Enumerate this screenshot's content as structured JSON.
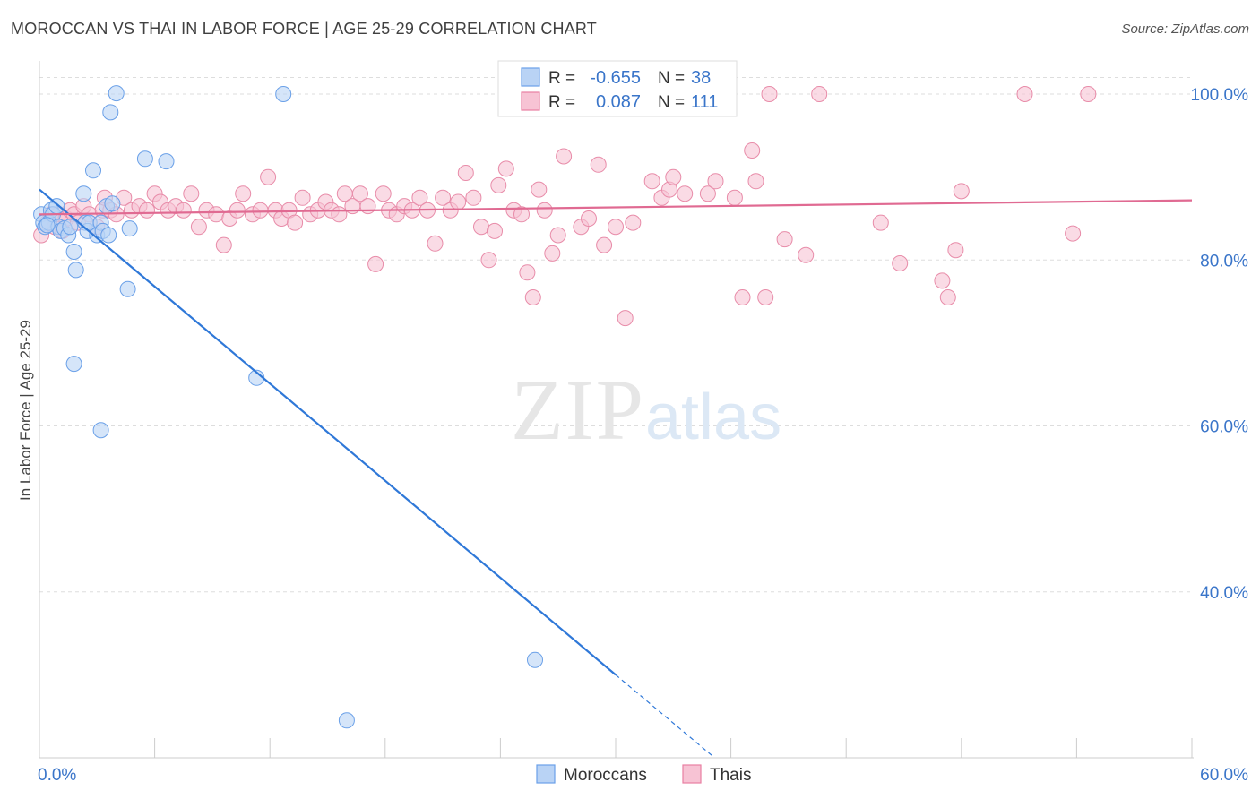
{
  "header": {
    "title": "MOROCCAN VS THAI IN LABOR FORCE | AGE 25-29 CORRELATION CHART",
    "source": "Source: ZipAtlas.com"
  },
  "watermark": {
    "zip": "ZIP",
    "atlas": "atlas"
  },
  "stats_legend": {
    "rows": [
      {
        "r_label": "R =",
        "r_value": "-0.655",
        "n_label": "N =",
        "n_value": "38",
        "color": "#6aa0e8",
        "fill": "#b9d3f5"
      },
      {
        "r_label": "R =",
        "r_value": "0.087",
        "n_label": "N =",
        "n_value": "111",
        "color": "#e87fa2",
        "fill": "#f7c3d4"
      }
    ]
  },
  "colors": {
    "moroccan_fill": "#b9d3f5",
    "moroccan_stroke": "#6aa0e8",
    "moroccan_line": "#2f78d8",
    "thai_fill": "#f7c3d4",
    "thai_stroke": "#e88ca9",
    "thai_line": "#e06a92",
    "value_text": "#3a75c9",
    "grid": "#dddddd"
  },
  "chart_data": {
    "type": "scatter",
    "title": "MOROCCAN VS THAI IN LABOR FORCE | AGE 25-29 CORRELATION CHART",
    "xlabel": "",
    "ylabel": "In Labor Force | Age 25-29",
    "xlim": [
      0,
      60
    ],
    "ylim": [
      20,
      104
    ],
    "x_tick_labels": [
      "0.0%",
      "60.0%"
    ],
    "y_ticks": [
      40,
      60,
      80,
      100
    ],
    "y_tick_labels": [
      "40.0%",
      "60.0%",
      "80.0%",
      "100.0%"
    ],
    "grid": "horizontal dashed",
    "legend_position": "bottom-center",
    "series": [
      {
        "name": "Moroccans",
        "r": -0.655,
        "n": 38,
        "trend": {
          "x_start": 0.0,
          "y_start": 88.5,
          "x_end": 30.0,
          "y_end": 30.0,
          "dashed_to_x": 35.0,
          "dashed_to_y": 20.3
        },
        "points": [
          [
            0.1,
            85.5
          ],
          [
            0.2,
            84.5
          ],
          [
            0.3,
            84.0
          ],
          [
            0.5,
            84.5
          ],
          [
            0.6,
            86.0
          ],
          [
            0.7,
            85.5
          ],
          [
            0.9,
            86.5
          ],
          [
            1.0,
            84.0
          ],
          [
            1.1,
            83.5
          ],
          [
            1.3,
            83.8
          ],
          [
            1.5,
            83.0
          ],
          [
            1.6,
            84.0
          ],
          [
            1.8,
            81.0
          ],
          [
            1.9,
            78.8
          ],
          [
            2.3,
            88.0
          ],
          [
            2.4,
            84.5
          ],
          [
            2.5,
            83.5
          ],
          [
            2.6,
            84.5
          ],
          [
            2.8,
            90.8
          ],
          [
            3.0,
            83.0
          ],
          [
            3.2,
            84.5
          ],
          [
            3.3,
            83.5
          ],
          [
            3.5,
            86.5
          ],
          [
            3.6,
            83.0
          ],
          [
            3.8,
            86.8
          ],
          [
            3.7,
            97.8
          ],
          [
            4.0,
            100.1
          ],
          [
            4.6,
            76.5
          ],
          [
            4.7,
            83.8
          ],
          [
            5.5,
            92.2
          ],
          [
            6.6,
            91.9
          ],
          [
            1.8,
            67.5
          ],
          [
            3.2,
            59.5
          ],
          [
            11.3,
            65.8
          ],
          [
            12.7,
            100.0
          ],
          [
            25.8,
            31.8
          ],
          [
            16.0,
            24.5
          ],
          [
            0.4,
            84.2
          ]
        ]
      },
      {
        "name": "Thais",
        "r": 0.087,
        "n": 111,
        "trend": {
          "x_start": 0.0,
          "y_start": 85.5,
          "x_end": 60.0,
          "y_end": 87.2
        },
        "points": [
          [
            0.1,
            83.0
          ],
          [
            0.4,
            84.5
          ],
          [
            0.6,
            85.5
          ],
          [
            0.8,
            84.0
          ],
          [
            1.0,
            85.5
          ],
          [
            1.2,
            83.5
          ],
          [
            1.4,
            85.0
          ],
          [
            1.6,
            86.0
          ],
          [
            1.8,
            85.5
          ],
          [
            2.0,
            84.5
          ],
          [
            2.3,
            86.5
          ],
          [
            2.6,
            85.5
          ],
          [
            3.0,
            84.0
          ],
          [
            3.3,
            86.0
          ],
          [
            3.4,
            87.5
          ],
          [
            3.7,
            86.0
          ],
          [
            4.0,
            85.5
          ],
          [
            4.4,
            87.5
          ],
          [
            4.8,
            86.0
          ],
          [
            5.2,
            86.5
          ],
          [
            5.6,
            86.0
          ],
          [
            6.0,
            88.0
          ],
          [
            6.3,
            87.0
          ],
          [
            6.7,
            86.0
          ],
          [
            7.1,
            86.5
          ],
          [
            7.5,
            86.0
          ],
          [
            7.9,
            88.0
          ],
          [
            8.3,
            84.0
          ],
          [
            8.7,
            86.0
          ],
          [
            9.2,
            85.5
          ],
          [
            9.6,
            81.8
          ],
          [
            9.9,
            85.0
          ],
          [
            10.3,
            86.0
          ],
          [
            10.6,
            88.0
          ],
          [
            11.1,
            85.5
          ],
          [
            11.5,
            86.0
          ],
          [
            11.9,
            90.0
          ],
          [
            12.3,
            86.0
          ],
          [
            12.6,
            85.0
          ],
          [
            13.0,
            86.0
          ],
          [
            13.3,
            84.5
          ],
          [
            13.7,
            87.5
          ],
          [
            14.1,
            85.5
          ],
          [
            14.5,
            86.0
          ],
          [
            14.9,
            87.0
          ],
          [
            15.2,
            86.0
          ],
          [
            15.6,
            85.5
          ],
          [
            15.9,
            88.0
          ],
          [
            16.3,
            86.5
          ],
          [
            16.7,
            88.0
          ],
          [
            17.1,
            86.5
          ],
          [
            17.5,
            79.5
          ],
          [
            17.9,
            88.0
          ],
          [
            18.2,
            86.0
          ],
          [
            18.6,
            85.5
          ],
          [
            19.0,
            86.5
          ],
          [
            19.4,
            86.0
          ],
          [
            19.8,
            87.5
          ],
          [
            20.2,
            86.0
          ],
          [
            20.6,
            82.0
          ],
          [
            21.0,
            87.5
          ],
          [
            21.4,
            86.0
          ],
          [
            21.8,
            87.0
          ],
          [
            22.2,
            90.5
          ],
          [
            22.6,
            87.5
          ],
          [
            23.0,
            84.0
          ],
          [
            23.4,
            80.0
          ],
          [
            23.7,
            83.5
          ],
          [
            23.9,
            89.0
          ],
          [
            24.3,
            91.0
          ],
          [
            24.7,
            86.0
          ],
          [
            25.1,
            85.5
          ],
          [
            25.4,
            78.5
          ],
          [
            25.7,
            75.5
          ],
          [
            26.0,
            88.5
          ],
          [
            26.3,
            86.0
          ],
          [
            26.7,
            80.8
          ],
          [
            27.0,
            83.0
          ],
          [
            27.3,
            92.5
          ],
          [
            28.2,
            84.0
          ],
          [
            28.6,
            85.0
          ],
          [
            29.1,
            91.5
          ],
          [
            29.4,
            81.8
          ],
          [
            30.0,
            84.0
          ],
          [
            30.5,
            73.0
          ],
          [
            30.9,
            84.5
          ],
          [
            31.9,
            89.5
          ],
          [
            32.4,
            87.5
          ],
          [
            32.8,
            88.5
          ],
          [
            33.0,
            90.0
          ],
          [
            33.6,
            88.0
          ],
          [
            34.8,
            88.0
          ],
          [
            35.2,
            89.5
          ],
          [
            36.2,
            87.5
          ],
          [
            36.6,
            75.5
          ],
          [
            37.1,
            93.2
          ],
          [
            37.3,
            89.5
          ],
          [
            37.8,
            75.5
          ],
          [
            38.0,
            100.0
          ],
          [
            40.6,
            100.0
          ],
          [
            38.8,
            82.5
          ],
          [
            39.9,
            80.6
          ],
          [
            43.8,
            84.5
          ],
          [
            44.8,
            79.6
          ],
          [
            47.0,
            77.5
          ],
          [
            47.3,
            75.5
          ],
          [
            47.7,
            81.2
          ],
          [
            48.0,
            88.3
          ],
          [
            51.3,
            100.0
          ],
          [
            53.8,
            83.2
          ],
          [
            54.6,
            100.0
          ]
        ]
      }
    ]
  },
  "bottom_legend": {
    "items": [
      "Moroccans",
      "Thais"
    ]
  }
}
